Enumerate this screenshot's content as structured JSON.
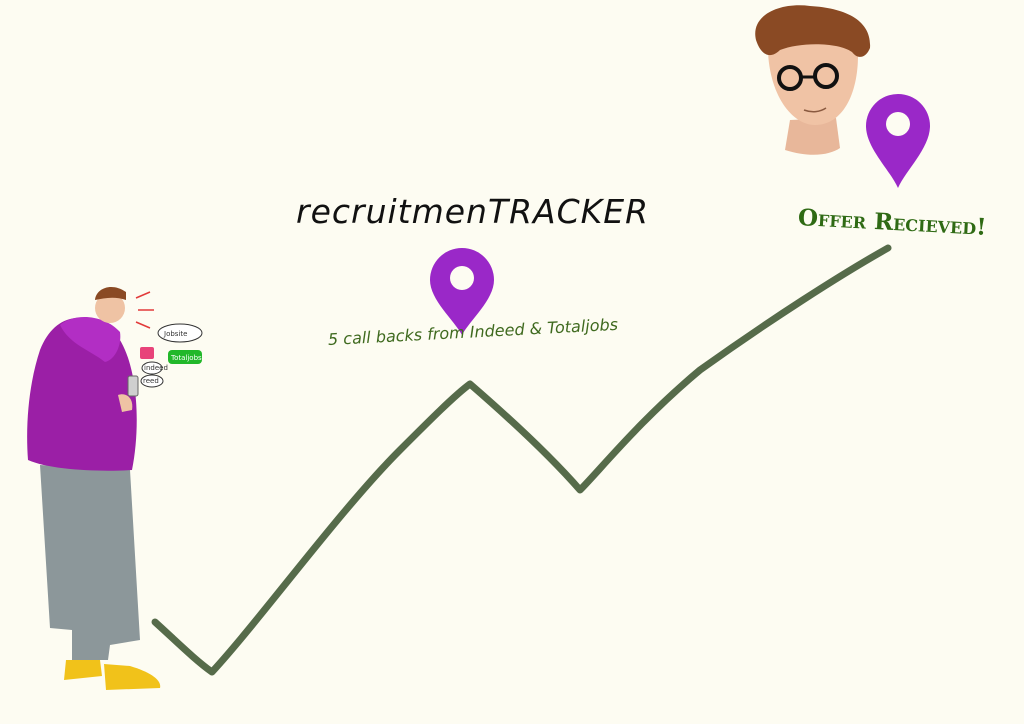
{
  "title": "recruitmenTRACKER",
  "milestones": [
    {
      "label": "5 call backs from Indeed & Totaljobs"
    },
    {
      "label": "Offer Recieved!"
    }
  ],
  "phone_bubbles": {
    "jobsite": "Jobsite",
    "indeed": "indeed",
    "totaljobs": "Totaljobs",
    "reed": "reed"
  },
  "colors": {
    "background": "#fdfcf2",
    "path_line": "#566b4a",
    "pin": "#9a28c8",
    "hoodie": "#9b1fa6",
    "trousers": "#8c979a",
    "shoes": "#f1c21a",
    "text_green": "#3f6a1f"
  }
}
